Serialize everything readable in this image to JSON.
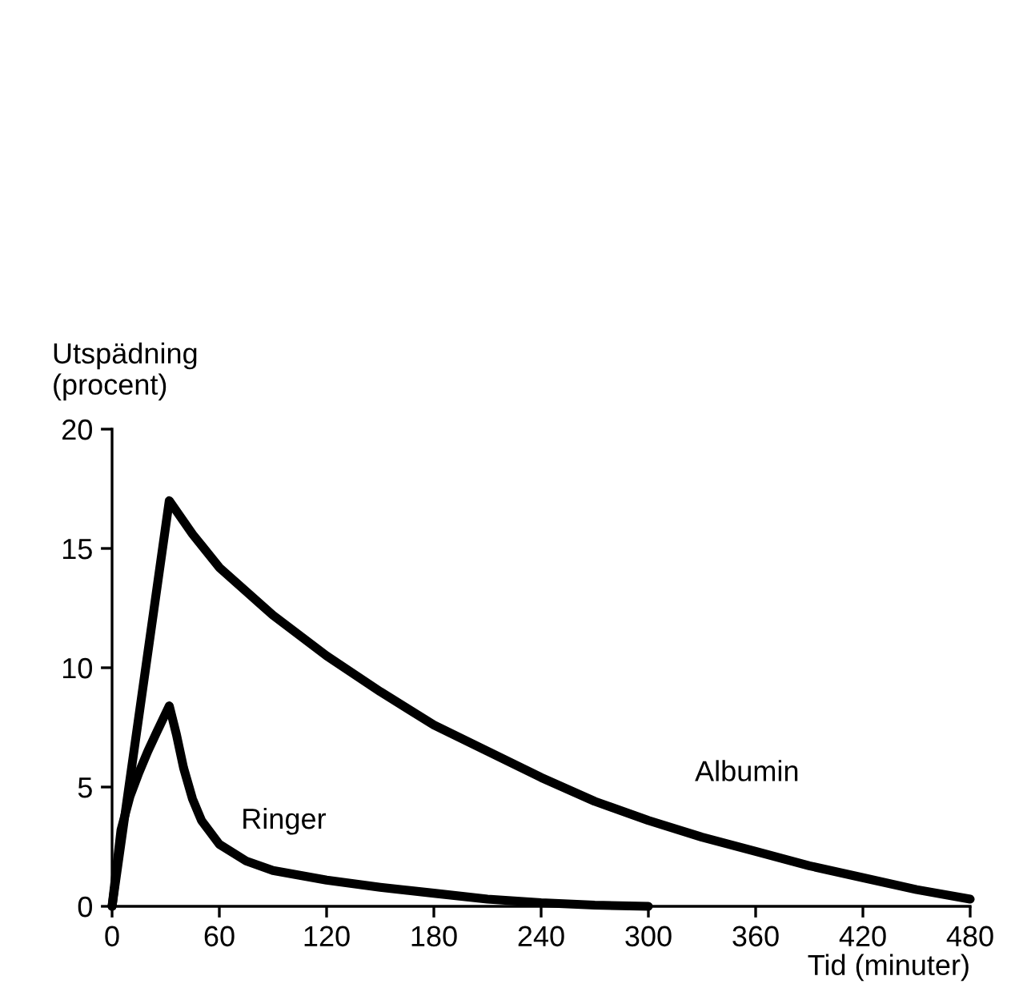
{
  "chart_data": {
    "type": "line",
    "ylabel": "Utspädning\n(procent)",
    "xlabel": "Tid (minuter)",
    "series": [
      {
        "name": "Albumin",
        "color": "#000000",
        "x": [
          0,
          32,
          45,
          60,
          90,
          120,
          150,
          180,
          210,
          240,
          270,
          300,
          330,
          360,
          390,
          420,
          450,
          480
        ],
        "values": [
          0,
          17,
          15.6,
          14.2,
          12.2,
          10.5,
          9.0,
          7.6,
          6.5,
          5.4,
          4.4,
          3.6,
          2.9,
          2.3,
          1.7,
          1.2,
          0.7,
          0.3
        ]
      },
      {
        "name": "Ringer",
        "color": "#000000",
        "x": [
          0,
          5,
          10,
          15,
          20,
          25,
          32,
          36,
          40,
          45,
          50,
          60,
          75,
          90,
          120,
          150,
          180,
          210,
          240,
          270,
          300
        ],
        "values": [
          0,
          3.2,
          4.6,
          5.6,
          6.5,
          7.3,
          8.4,
          7.2,
          5.8,
          4.5,
          3.6,
          2.6,
          1.9,
          1.5,
          1.1,
          0.8,
          0.55,
          0.3,
          0.15,
          0.05,
          0
        ]
      }
    ],
    "xlim": [
      0,
      480
    ],
    "xticks": [
      0,
      60,
      120,
      180,
      240,
      300,
      360,
      420,
      480
    ],
    "ylim": [
      0,
      20
    ],
    "yticks": [
      0,
      5,
      10,
      15,
      20
    ],
    "grid": false,
    "legend": false,
    "marker": "none",
    "line_style": "solid"
  }
}
